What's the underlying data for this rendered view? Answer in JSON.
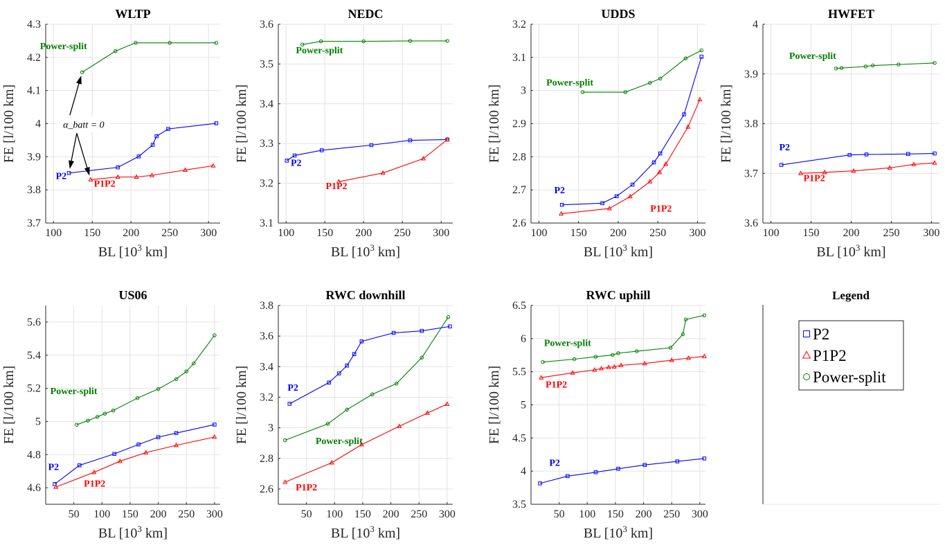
{
  "colors": {
    "P2": "#0000ff",
    "P1P2": "#ff0000",
    "Power-split": "#008000",
    "grid": "#e2e2e2",
    "axis": "#262626"
  },
  "legend": {
    "title": "Legend",
    "entries": [
      {
        "label": "P2",
        "color": "#0000ff",
        "marker": "square"
      },
      {
        "label": "P1P2",
        "color": "#ff0000",
        "marker": "triangle"
      },
      {
        "label": "Power-split",
        "color": "#008000",
        "marker": "circle"
      }
    ]
  },
  "chart_data": [
    {
      "type": "line",
      "title": "WLTP",
      "xlabel": "BL [10^3 km]",
      "ylabel": "FE [l/100 km]",
      "xlim": [
        90,
        315
      ],
      "ylim": [
        3.7,
        4.3
      ],
      "xticks": [
        100,
        150,
        200,
        250,
        300
      ],
      "yticks": [
        3.7,
        3.8,
        3.9,
        4,
        4.1,
        4.2,
        4.3
      ],
      "series": [
        {
          "name": "P2",
          "x": [
            120,
            183,
            210,
            228,
            233,
            248,
            310
          ],
          "y": [
            3.851,
            3.868,
            3.901,
            3.936,
            3.962,
            3.984,
            4.001
          ]
        },
        {
          "name": "P1P2",
          "x": [
            148,
            183,
            207,
            227,
            270,
            306
          ],
          "y": [
            3.831,
            3.839,
            3.839,
            3.844,
            3.86,
            3.873
          ]
        },
        {
          "name": "Power-split",
          "x": [
            137,
            180,
            206,
            250,
            310
          ],
          "y": [
            4.155,
            4.219,
            4.244,
            4.244,
            4.244
          ]
        }
      ],
      "series_labels": [
        {
          "text": "Power-split",
          "series": "Power-split",
          "x": 113,
          "y": 4.225
        },
        {
          "text": "P2",
          "series": "P2",
          "x": 110,
          "y": 3.833
        },
        {
          "text": "P1P2",
          "series": "P1P2",
          "x": 166,
          "y": 3.81
        }
      ],
      "annotation": {
        "text": "α_batt = 0",
        "x": 139,
        "y": 3.99
      }
    },
    {
      "type": "line",
      "title": "NEDC",
      "xlabel": "BL [10^3 km]",
      "ylabel": "FE [l/100 km]",
      "xlim": [
        90,
        315
      ],
      "ylim": [
        3.1,
        3.6
      ],
      "xticks": [
        100,
        150,
        200,
        250,
        300
      ],
      "yticks": [
        3.1,
        3.2,
        3.3,
        3.4,
        3.5,
        3.6
      ],
      "series": [
        {
          "name": "P2",
          "x": [
            101,
            111,
            146,
            210,
            260,
            308
          ],
          "y": [
            3.257,
            3.27,
            3.283,
            3.296,
            3.308,
            3.31
          ]
        },
        {
          "name": "P1P2",
          "x": [
            168,
            225,
            277,
            308
          ],
          "y": [
            3.204,
            3.226,
            3.262,
            3.31
          ]
        },
        {
          "name": "Power-split",
          "x": [
            121,
            145,
            200,
            260,
            308
          ],
          "y": [
            3.549,
            3.557,
            3.557,
            3.558,
            3.558
          ]
        }
      ],
      "series_labels": [
        {
          "text": "Power-split",
          "series": "Power-split",
          "x": 143,
          "y": 3.527
        },
        {
          "text": "P2",
          "series": "P2",
          "x": 113,
          "y": 3.244
        },
        {
          "text": "P1P2",
          "series": "P1P2",
          "x": 165,
          "y": 3.185
        }
      ]
    },
    {
      "type": "line",
      "title": "UDDS",
      "xlabel": "BL [10^3 km]",
      "ylabel": "FE [l/100 km]",
      "xlim": [
        90,
        310
      ],
      "ylim": [
        2.6,
        3.2
      ],
      "xticks": [
        100,
        150,
        200,
        250,
        300
      ],
      "yticks": [
        2.6,
        2.7,
        2.8,
        2.9,
        3,
        3.1,
        3.2
      ],
      "series": [
        {
          "name": "P2",
          "x": [
            129,
            180,
            198,
            218,
            245,
            253,
            283,
            305
          ],
          "y": [
            2.655,
            2.66,
            2.681,
            2.716,
            2.783,
            2.81,
            2.928,
            3.102
          ]
        },
        {
          "name": "P1P2",
          "x": [
            128,
            189,
            215,
            240,
            252,
            260,
            288,
            303
          ],
          "y": [
            2.628,
            2.644,
            2.68,
            2.725,
            2.753,
            2.778,
            2.89,
            2.973
          ]
        },
        {
          "name": "Power-split",
          "x": [
            155,
            209,
            240,
            253,
            285,
            305
          ],
          "y": [
            2.995,
            2.995,
            3.023,
            3.036,
            3.097,
            3.121
          ]
        }
      ],
      "series_labels": [
        {
          "text": "Power-split",
          "series": "Power-split",
          "x": 139,
          "y": 3.015
        },
        {
          "text": "P2",
          "series": "P2",
          "x": 126,
          "y": 2.69
        },
        {
          "text": "P1P2",
          "series": "P1P2",
          "x": 254,
          "y": 2.635
        }
      ]
    },
    {
      "type": "line",
      "title": "HWFET",
      "xlabel": "BL [10^3 km]",
      "ylabel": "FE [l/100 km]",
      "xlim": [
        90,
        310
      ],
      "ylim": [
        3.6,
        4.0
      ],
      "xticks": [
        100,
        150,
        200,
        250,
        300
      ],
      "yticks": [
        3.6,
        3.7,
        3.8,
        3.9,
        4
      ],
      "series": [
        {
          "name": "P2",
          "x": [
            113,
            198,
            219,
            271,
            304
          ],
          "y": [
            3.717,
            3.737,
            3.738,
            3.739,
            3.74
          ]
        },
        {
          "name": "P1P2",
          "x": [
            137,
            167,
            203,
            248,
            278,
            304
          ],
          "y": [
            3.7,
            3.702,
            3.705,
            3.711,
            3.718,
            3.721
          ]
        },
        {
          "name": "Power-split",
          "x": [
            181,
            188,
            218,
            227,
            259,
            304
          ],
          "y": [
            3.911,
            3.912,
            3.915,
            3.917,
            3.919,
            3.922
          ]
        }
      ],
      "series_labels": [
        {
          "text": "Power-split",
          "series": "Power-split",
          "x": 152,
          "y": 3.93
        },
        {
          "text": "P2",
          "series": "P2",
          "x": 117,
          "y": 3.746
        },
        {
          "text": "P1P2",
          "series": "P1P2",
          "x": 154,
          "y": 3.684
        }
      ]
    },
    {
      "type": "line",
      "title": "US06",
      "xlabel": "BL [10^3 km]",
      "ylabel": "FE [l/100 km]",
      "xlim": [
        0,
        310
      ],
      "ylim": [
        4.5,
        5.7
      ],
      "xticks": [
        50,
        100,
        150,
        200,
        250,
        300
      ],
      "yticks": [
        4.6,
        4.8,
        5,
        5.2,
        5.4,
        5.6
      ],
      "series": [
        {
          "name": "P2",
          "x": [
            16,
            60,
            122,
            165,
            200,
            232,
            300
          ],
          "y": [
            4.622,
            4.735,
            4.804,
            4.861,
            4.905,
            4.93,
            4.981
          ]
        },
        {
          "name": "P1P2",
          "x": [
            18,
            86,
            132,
            178,
            232,
            300
          ],
          "y": [
            4.604,
            4.693,
            4.76,
            4.812,
            4.856,
            4.906
          ]
        },
        {
          "name": "Power-split",
          "x": [
            55,
            75,
            92,
            105,
            120,
            163,
            200,
            232,
            250,
            263,
            300
          ],
          "y": [
            4.98,
            5.005,
            5.028,
            5.047,
            5.066,
            5.141,
            5.196,
            5.256,
            5.302,
            5.35,
            5.52
          ]
        }
      ],
      "series_labels": [
        {
          "text": "Power-split",
          "series": "Power-split",
          "x": 50,
          "y": 5.165
        },
        {
          "text": "P2",
          "series": "P2",
          "x": 14,
          "y": 4.706
        },
        {
          "text": "P1P2",
          "series": "P1P2",
          "x": 87,
          "y": 4.607
        }
      ]
    },
    {
      "type": "line",
      "title": "RWC downhill",
      "xlabel": "BL [10^3 km]",
      "ylabel": "FE [l/100 km]",
      "xlim": [
        0,
        310
      ],
      "ylim": [
        2.5,
        3.8
      ],
      "xticks": [
        50,
        100,
        150,
        200,
        250,
        300
      ],
      "yticks": [
        2.6,
        2.8,
        3,
        3.2,
        3.4,
        3.6,
        3.8
      ],
      "series": [
        {
          "name": "P2",
          "x": [
            20,
            90,
            108,
            122,
            135,
            148,
            205,
            255,
            305
          ],
          "y": [
            3.157,
            3.296,
            3.356,
            3.407,
            3.482,
            3.565,
            3.621,
            3.634,
            3.663
          ]
        },
        {
          "name": "P1P2",
          "x": [
            12,
            95,
            148,
            215,
            265,
            300
          ],
          "y": [
            2.645,
            2.772,
            2.89,
            3.01,
            3.097,
            3.155
          ]
        },
        {
          "name": "Power-split",
          "x": [
            12,
            88,
            122,
            167,
            210,
            255,
            302
          ],
          "y": [
            2.919,
            3.026,
            3.119,
            3.219,
            3.289,
            3.459,
            3.724
          ]
        }
      ],
      "series_labels": [
        {
          "text": "Power-split",
          "series": "Power-split",
          "x": 108,
          "y": 2.895
        },
        {
          "text": "P2",
          "series": "P2",
          "x": 26,
          "y": 3.242
        },
        {
          "text": "P1P2",
          "series": "P1P2",
          "x": 50,
          "y": 2.59
        }
      ]
    },
    {
      "type": "line",
      "title": "RWC uphill",
      "xlabel": "BL [10^3 km]",
      "ylabel": "FE [l/100 km]",
      "xlim": [
        0,
        310
      ],
      "ylim": [
        3.5,
        6.5
      ],
      "xticks": [
        50,
        100,
        150,
        200,
        250,
        300
      ],
      "yticks": [
        3.5,
        4,
        4.5,
        5,
        5.5,
        6,
        6.5
      ],
      "series": [
        {
          "name": "P2",
          "x": [
            16,
            65,
            115,
            155,
            202,
            260,
            308
          ],
          "y": [
            3.815,
            3.925,
            3.983,
            4.036,
            4.094,
            4.147,
            4.191
          ]
        },
        {
          "name": "P1P2",
          "x": [
            18,
            74,
            113,
            125,
            138,
            148,
            160,
            202,
            250,
            280,
            308
          ],
          "y": [
            5.411,
            5.484,
            5.528,
            5.549,
            5.567,
            5.575,
            5.597,
            5.624,
            5.675,
            5.707,
            5.733
          ]
        },
        {
          "name": "Power-split",
          "x": [
            21,
            77,
            115,
            145,
            155,
            188,
            248,
            270,
            275,
            308
          ],
          "y": [
            5.646,
            5.69,
            5.726,
            5.753,
            5.78,
            5.809,
            5.862,
            6.066,
            6.289,
            6.351
          ]
        }
      ],
      "series_labels": [
        {
          "text": "Power-split",
          "series": "Power-split",
          "x": 65,
          "y": 5.89
        },
        {
          "text": "P2",
          "series": "P2",
          "x": 42,
          "y": 4.08
        },
        {
          "text": "P1P2",
          "series": "P1P2",
          "x": 45,
          "y": 5.26
        }
      ]
    }
  ]
}
